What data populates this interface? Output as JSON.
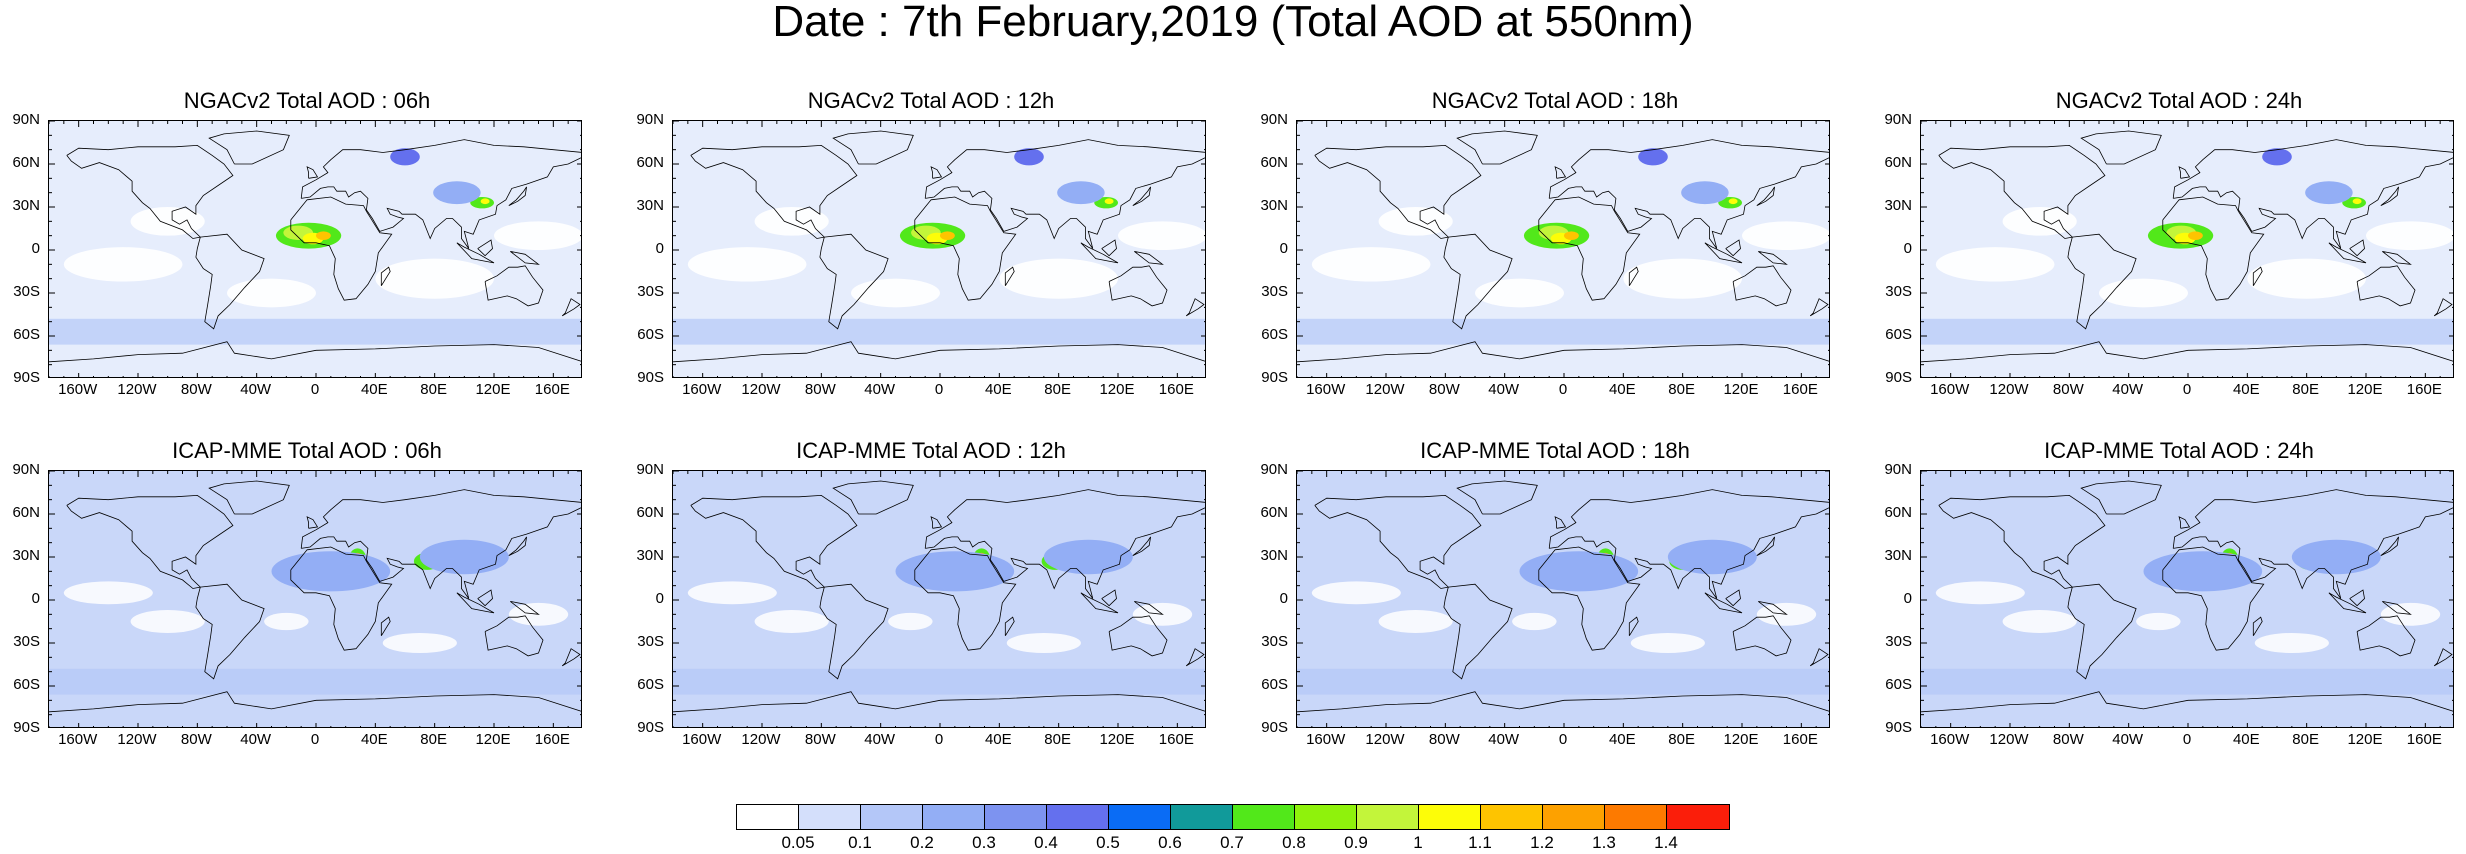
{
  "title": "Date : 7th February,2019 (Total AOD at 550nm)",
  "lat_labels": [
    "90N",
    "60N",
    "30N",
    "0",
    "30S",
    "60S",
    "90S"
  ],
  "lon_labels": [
    "160W",
    "120W",
    "80W",
    "40W",
    "0",
    "40E",
    "80E",
    "120E",
    "160E"
  ],
  "panels": [
    {
      "title": "NGACv2 Total AOD : 06h",
      "model": "NGACv2",
      "lead": "06h"
    },
    {
      "title": "NGACv2 Total AOD : 12h",
      "model": "NGACv2",
      "lead": "12h"
    },
    {
      "title": "NGACv2 Total AOD : 18h",
      "model": "NGACv2",
      "lead": "18h"
    },
    {
      "title": "NGACv2 Total AOD : 24h",
      "model": "NGACv2",
      "lead": "24h"
    },
    {
      "title": "ICAP-MME Total AOD : 06h",
      "model": "ICAP-MME",
      "lead": "06h"
    },
    {
      "title": "ICAP-MME Total AOD : 12h",
      "model": "ICAP-MME",
      "lead": "12h"
    },
    {
      "title": "ICAP-MME Total AOD : 18h",
      "model": "ICAP-MME",
      "lead": "18h"
    },
    {
      "title": "ICAP-MME Total AOD : 24h",
      "model": "ICAP-MME",
      "lead": "24h"
    }
  ],
  "colorbar": {
    "labels": [
      "0.05",
      "0.1",
      "0.2",
      "0.3",
      "0.4",
      "0.5",
      "0.6",
      "0.7",
      "0.8",
      "0.9",
      "1",
      "1.1",
      "1.2",
      "1.3",
      "1.4"
    ],
    "colors": [
      "#ffffff",
      "#d4dffb",
      "#b4c7f8",
      "#93aef5",
      "#7d93f0",
      "#6470ee",
      "#0a6cf5",
      "#119a9a",
      "#52e81a",
      "#8ff20c",
      "#c3f53a",
      "#fdfd08",
      "#fec400",
      "#fda100",
      "#fd7a00",
      "#fb1e0a"
    ]
  }
}
